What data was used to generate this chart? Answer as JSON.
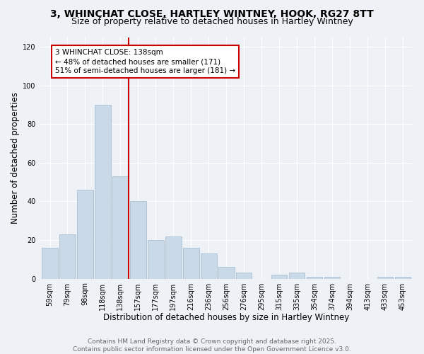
{
  "title1": "3, WHINCHAT CLOSE, HARTLEY WINTNEY, HOOK, RG27 8TT",
  "title2": "Size of property relative to detached houses in Hartley Wintney",
  "xlabel": "Distribution of detached houses by size in Hartley Wintney",
  "ylabel": "Number of detached properties",
  "bar_labels": [
    "59sqm",
    "79sqm",
    "98sqm",
    "118sqm",
    "138sqm",
    "157sqm",
    "177sqm",
    "197sqm",
    "216sqm",
    "236sqm",
    "256sqm",
    "276sqm",
    "295sqm",
    "315sqm",
    "335sqm",
    "354sqm",
    "374sqm",
    "394sqm",
    "413sqm",
    "433sqm",
    "453sqm"
  ],
  "bar_values": [
    16,
    23,
    46,
    90,
    53,
    40,
    20,
    22,
    16,
    13,
    6,
    3,
    0,
    2,
    3,
    1,
    1,
    0,
    0,
    1,
    1
  ],
  "bar_color": "#c9d9e8",
  "bar_edge_color": "#a0b8cc",
  "vline_color": "#cc0000",
  "vline_bar_index": 4,
  "annotation_text": "3 WHINCHAT CLOSE: 138sqm\n← 48% of detached houses are smaller (171)\n51% of semi-detached houses are larger (181) →",
  "annotation_box_color": "#ffffff",
  "annotation_box_edge_color": "#cc0000",
  "ylim": [
    0,
    125
  ],
  "yticks": [
    0,
    20,
    40,
    60,
    80,
    100,
    120
  ],
  "footnote1": "Contains HM Land Registry data © Crown copyright and database right 2025.",
  "footnote2": "Contains public sector information licensed under the Open Government Licence v3.0.",
  "background_color": "#eef2f7",
  "plot_bg_color": "#eef2f7",
  "title1_fontsize": 10,
  "title2_fontsize": 9,
  "xlabel_fontsize": 8.5,
  "ylabel_fontsize": 8.5,
  "tick_fontsize": 7,
  "annotation_fontsize": 7.5,
  "footnote_fontsize": 6.5
}
